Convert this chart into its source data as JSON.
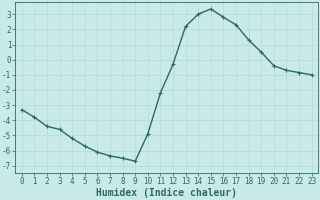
{
  "x": [
    0,
    1,
    2,
    3,
    4,
    5,
    6,
    7,
    8,
    9,
    10,
    11,
    12,
    13,
    14,
    15,
    16,
    17,
    18,
    19,
    20,
    21,
    22,
    23
  ],
  "y": [
    -3.3,
    -3.8,
    -4.4,
    -4.6,
    -5.2,
    -5.7,
    -6.1,
    -6.35,
    -6.5,
    -6.7,
    -4.9,
    -2.2,
    -0.3,
    2.2,
    3.0,
    3.35,
    2.8,
    2.3,
    1.3,
    0.5,
    -0.4,
    -0.7,
    -0.85,
    -1.0
  ],
  "line_color": "#2d6b5e",
  "marker": "+",
  "marker_size": 3.5,
  "bg_color": "#c8eaea",
  "grid_color": "#b8d8d8",
  "xlabel": "Humidex (Indice chaleur)",
  "xlim": [
    -0.5,
    23.5
  ],
  "ylim": [
    -7.5,
    3.8
  ],
  "yticks": [
    -7,
    -6,
    -5,
    -4,
    -3,
    -2,
    -1,
    0,
    1,
    2,
    3
  ],
  "xticks": [
    0,
    1,
    2,
    3,
    4,
    5,
    6,
    7,
    8,
    9,
    10,
    11,
    12,
    13,
    14,
    15,
    16,
    17,
    18,
    19,
    20,
    21,
    22,
    23
  ],
  "tick_fontsize": 5.5,
  "xlabel_fontsize": 7,
  "line_width": 1.0
}
